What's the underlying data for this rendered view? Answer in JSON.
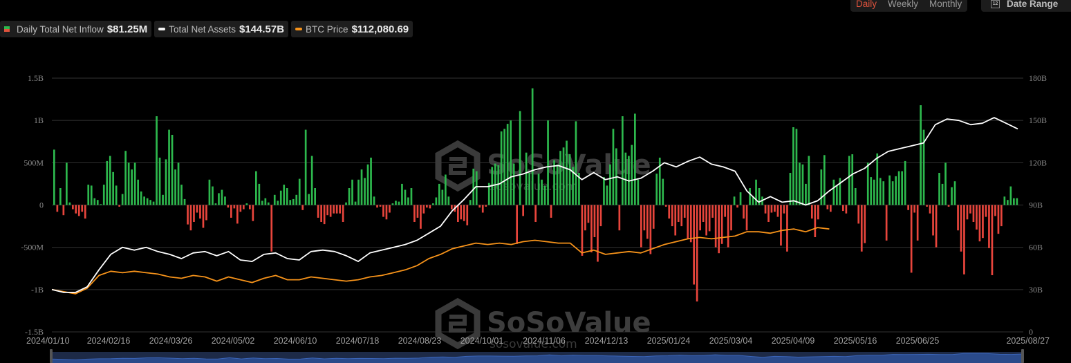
{
  "legend": {
    "inflow": {
      "label": "Daily Total Net Inflow",
      "value": "$81.25M",
      "colors": [
        "#e0533d",
        "#2db84d"
      ]
    },
    "assets": {
      "label": "Total Net Assets",
      "value": "$144.57B",
      "color": "#ffffff"
    },
    "btc": {
      "label": "BTC Price",
      "value": "$112,080.69",
      "color": "#f7931a"
    }
  },
  "period": {
    "options": [
      "Daily",
      "Weekly",
      "Monthly"
    ],
    "active": "Daily"
  },
  "date_range": {
    "icon": "calendar-icon",
    "icon_text": "12",
    "label": "Date Range"
  },
  "watermark": {
    "brand": "SoSoValue",
    "url": "sosovalue.com"
  },
  "chart_data": {
    "type": "bar+line",
    "title": "",
    "x_tick_labels": [
      "2024/01/10",
      "2024/02/16",
      "2024/03/26",
      "2024/05/02",
      "2024/06/10",
      "2024/07/18",
      "2024/08/23",
      "2024/10/01",
      "2024/11/06",
      "2024/12/13",
      "2025/01/24",
      "2025/03/04",
      "2025/04/09",
      "2025/05/16",
      "2025/06/25",
      "2025/08/27"
    ],
    "y_left": {
      "ticks": [
        "1.5B",
        "1B",
        "500M",
        "0",
        "-500M",
        "-1B",
        "-1.5B"
      ],
      "range": [
        -1500,
        1500
      ],
      "unit": "M USD"
    },
    "y_right": {
      "ticks": [
        "180B",
        "150B",
        "120B",
        "90B",
        "60B",
        "30B",
        "0"
      ],
      "range": [
        0,
        180
      ],
      "unit": "B USD"
    },
    "grid": true,
    "legend_position": "top-left",
    "series": [
      {
        "name": "Daily Total Net Inflow",
        "type": "bar",
        "axis": "left",
        "positive_color": "#2db84d",
        "negative_color": "#e8453c",
        "samples_by_month_approx_M": {
          "2024-01": [
            655,
            -80,
            200,
            -120,
            500,
            30,
            -50,
            -100,
            -130,
            -80,
            -160
          ],
          "2024-02": [
            240,
            230,
            80,
            60,
            10,
            240,
            520,
            580,
            390,
            230,
            -20,
            130,
            640,
            500,
            420,
            500,
            300,
            160,
            100,
            80,
            60,
            40
          ],
          "2024-03": [
            1050,
            560,
            120,
            540,
            890,
            830,
            420,
            500,
            240,
            70,
            -230,
            -300,
            -200,
            -90,
            -160,
            -270,
            -180
          ],
          "2024-04": [
            300,
            220,
            20,
            140,
            180,
            100,
            -30,
            -150,
            -40,
            -220,
            -80,
            -50,
            20,
            -50,
            -190
          ],
          "2024-05": [
            400,
            250,
            50,
            80,
            30,
            -550,
            120,
            50,
            170,
            240,
            200,
            60,
            70,
            120,
            310,
            -60
          ],
          "2024-06": [
            890,
            130,
            580,
            200,
            -150,
            -200,
            -226,
            -120,
            -140,
            -100,
            -100,
            -100,
            -200
          ],
          "2024-07": [
            30,
            200,
            300,
            40,
            300,
            420,
            320,
            480,
            560,
            100,
            -30,
            -20
          ],
          "2024-08": [
            -140,
            -170,
            -90,
            20,
            50,
            40,
            250,
            180,
            90,
            200,
            -200
          ],
          "2024-09": [
            -150,
            -280,
            -100,
            -30,
            -40,
            20,
            90,
            250,
            180,
            360,
            100,
            -50,
            -80,
            -200,
            -170,
            -190
          ],
          "2024-10": [
            -240,
            60,
            430,
            400,
            -30,
            -90,
            -20,
            260,
            450,
            490,
            470,
            870,
            900,
            960,
            1000,
            490,
            -460
          ],
          "2024-11": [
            1110,
            -130,
            620,
            380,
            1380,
            -200,
            370,
            300,
            230,
            1000,
            -150,
            530,
            480,
            640,
            680,
            760
          ],
          "2024-12": [
            600,
            450,
            990,
            380,
            -600,
            -300,
            -210,
            -560,
            -380,
            -670,
            -250,
            330,
            230,
            480,
            900,
            670,
            -300
          ],
          "2025-01": [
            1050,
            620,
            580,
            710,
            1080,
            300,
            -500,
            -300,
            -400,
            -580,
            -280,
            370,
            560,
            310,
            -20,
            -160,
            -250
          ],
          "2025-02": [
            -360,
            -200,
            -250,
            -150,
            -400,
            -440,
            -940,
            -1140,
            -300,
            -200,
            -360,
            -310,
            -150,
            -500,
            -570,
            -460
          ],
          "2025-03": [
            -140,
            -500,
            -300,
            100,
            -30,
            150,
            -160,
            -300,
            200,
            100,
            300,
            200,
            100,
            -100,
            -200
          ],
          "2025-04": [
            -90,
            -80,
            -140,
            -480,
            -100,
            -550,
            380,
            920,
            900,
            500,
            480,
            250,
            580,
            -160,
            -380,
            -170
          ],
          "2025-05": [
            420,
            590,
            -50,
            -80,
            300,
            230,
            320,
            -70,
            -100,
            580,
            600,
            200,
            -220,
            -550,
            -450,
            500
          ],
          "2025-06": [
            330,
            300,
            610,
            320,
            280,
            -420,
            350,
            280,
            340,
            400,
            400,
            520,
            -60,
            -800,
            -90,
            -420
          ],
          "2025-07": [
            1180,
            890,
            -20,
            -100,
            -360,
            -500,
            380,
            250,
            500,
            -20,
            210,
            280,
            -300,
            -550,
            -820,
            -170,
            -100
          ],
          "2025-08": [
            -200,
            -290,
            -430,
            -390,
            -140,
            -510,
            -830,
            -130,
            -340,
            -250,
            100,
            60,
            220,
            80,
            81.25
          ]
        }
      },
      {
        "name": "Total Net Assets",
        "type": "line",
        "axis": "right",
        "color": "#ffffff",
        "points_B": [
          [
            0,
            30
          ],
          [
            0.02,
            28
          ],
          [
            0.04,
            28
          ],
          [
            0.06,
            32
          ],
          [
            0.08,
            44
          ],
          [
            0.1,
            55
          ],
          [
            0.12,
            60
          ],
          [
            0.14,
            58
          ],
          [
            0.16,
            60
          ],
          [
            0.18,
            57
          ],
          [
            0.2,
            55
          ],
          [
            0.22,
            52
          ],
          [
            0.24,
            56
          ],
          [
            0.26,
            57
          ],
          [
            0.28,
            54
          ],
          [
            0.3,
            57
          ],
          [
            0.32,
            51
          ],
          [
            0.34,
            50
          ],
          [
            0.36,
            55
          ],
          [
            0.38,
            56
          ],
          [
            0.4,
            52
          ],
          [
            0.42,
            51
          ],
          [
            0.44,
            57
          ],
          [
            0.46,
            58
          ],
          [
            0.48,
            57
          ],
          [
            0.5,
            54
          ],
          [
            0.52,
            50
          ],
          [
            0.54,
            56
          ],
          [
            0.56,
            58
          ],
          [
            0.58,
            60
          ],
          [
            0.6,
            62
          ],
          [
            0.62,
            65
          ],
          [
            0.64,
            70
          ],
          [
            0.66,
            75
          ],
          [
            0.68,
            86
          ],
          [
            0.7,
            94
          ],
          [
            0.72,
            103
          ],
          [
            0.74,
            103
          ],
          [
            0.76,
            105
          ],
          [
            0.78,
            110
          ],
          [
            0.8,
            112
          ],
          [
            0.82,
            115
          ],
          [
            0.84,
            117
          ],
          [
            0.86,
            118
          ],
          [
            0.88,
            115
          ],
          [
            0.9,
            108
          ],
          [
            0.92,
            113
          ],
          [
            0.94,
            108
          ],
          [
            0.96,
            110
          ],
          [
            0.98,
            107
          ],
          [
            1.0,
            109
          ],
          [
            1.02,
            114
          ],
          [
            1.04,
            120
          ],
          [
            1.06,
            117
          ],
          [
            1.08,
            121
          ],
          [
            1.1,
            124
          ],
          [
            1.12,
            119
          ],
          [
            1.14,
            117
          ],
          [
            1.16,
            114
          ],
          [
            1.18,
            100
          ],
          [
            1.2,
            92
          ],
          [
            1.22,
            96
          ],
          [
            1.24,
            92
          ],
          [
            1.26,
            93
          ],
          [
            1.28,
            90
          ],
          [
            1.3,
            93
          ],
          [
            1.32,
            100
          ],
          [
            1.34,
            106
          ],
          [
            1.36,
            112
          ],
          [
            1.38,
            116
          ],
          [
            1.4,
            123
          ],
          [
            1.42,
            128
          ],
          [
            1.44,
            130
          ],
          [
            1.46,
            132
          ],
          [
            1.48,
            134
          ],
          [
            1.5,
            147
          ],
          [
            1.52,
            151
          ],
          [
            1.54,
            150
          ],
          [
            1.56,
            147
          ],
          [
            1.58,
            148
          ],
          [
            1.6,
            152
          ],
          [
            1.62,
            148
          ],
          [
            1.64,
            144
          ]
        ]
      },
      {
        "name": "BTC Price",
        "type": "line",
        "axis": "right",
        "color": "#f7931a",
        "note": "scaled to right axis",
        "points_B": [
          [
            0,
            30
          ],
          [
            0.04,
            27
          ],
          [
            0.06,
            31
          ],
          [
            0.08,
            40
          ],
          [
            0.1,
            43
          ],
          [
            0.12,
            42
          ],
          [
            0.14,
            43
          ],
          [
            0.16,
            42
          ],
          [
            0.18,
            41
          ],
          [
            0.2,
            39
          ],
          [
            0.22,
            38
          ],
          [
            0.24,
            40
          ],
          [
            0.26,
            39
          ],
          [
            0.28,
            36
          ],
          [
            0.3,
            39
          ],
          [
            0.32,
            37
          ],
          [
            0.34,
            35
          ],
          [
            0.36,
            38
          ],
          [
            0.38,
            40
          ],
          [
            0.4,
            37
          ],
          [
            0.42,
            37
          ],
          [
            0.44,
            39
          ],
          [
            0.46,
            38
          ],
          [
            0.48,
            37
          ],
          [
            0.5,
            36
          ],
          [
            0.52,
            37
          ],
          [
            0.54,
            39
          ],
          [
            0.56,
            40
          ],
          [
            0.58,
            42
          ],
          [
            0.6,
            44
          ],
          [
            0.62,
            47
          ],
          [
            0.64,
            52
          ],
          [
            0.66,
            55
          ],
          [
            0.68,
            59
          ],
          [
            0.7,
            61
          ],
          [
            0.72,
            63
          ],
          [
            0.74,
            62
          ],
          [
            0.76,
            63
          ],
          [
            0.78,
            62
          ],
          [
            0.8,
            64
          ],
          [
            0.82,
            65
          ],
          [
            0.84,
            64
          ],
          [
            0.86,
            63
          ],
          [
            0.88,
            63
          ],
          [
            0.9,
            56
          ],
          [
            0.92,
            58
          ],
          [
            0.94,
            55
          ],
          [
            0.96,
            56
          ],
          [
            0.98,
            57
          ],
          [
            1.0,
            56
          ],
          [
            1.02,
            59
          ],
          [
            1.04,
            62
          ],
          [
            1.06,
            64
          ],
          [
            1.08,
            66
          ],
          [
            1.1,
            67
          ],
          [
            1.12,
            66
          ],
          [
            1.14,
            67
          ],
          [
            1.16,
            68
          ],
          [
            1.18,
            71
          ],
          [
            1.2,
            71
          ],
          [
            1.22,
            70
          ],
          [
            1.24,
            72
          ],
          [
            1.26,
            73
          ],
          [
            1.28,
            71
          ],
          [
            1.3,
            74
          ],
          [
            1.32,
            73
          ]
        ]
      }
    ]
  }
}
